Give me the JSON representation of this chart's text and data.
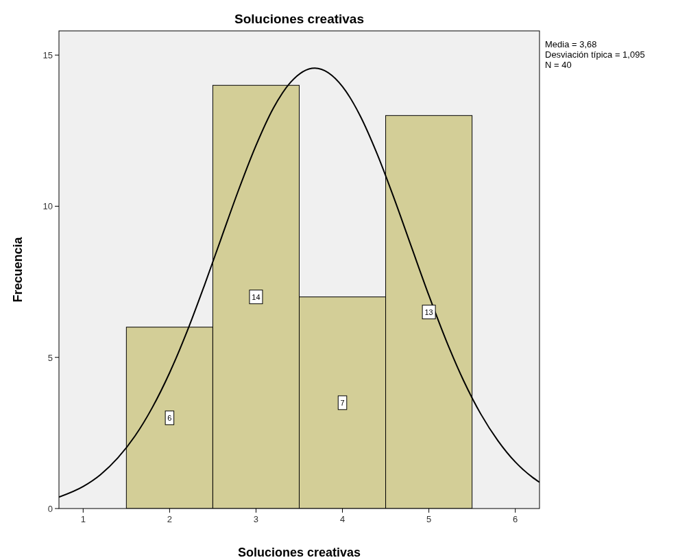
{
  "chart_data": {
    "type": "histogram",
    "title": "Soluciones creativas",
    "xlabel": "Soluciones creativas",
    "ylabel": "Frecuencia",
    "bins": [
      1.5,
      2.5,
      3.5,
      4.5,
      5.5
    ],
    "series": [
      {
        "color": "#d3ce97",
        "values": [
          6,
          14,
          7,
          13
        ],
        "value_labels": [
          "6",
          "14",
          "7",
          "13"
        ]
      },
      {
        "type": "line",
        "color": "#000000",
        "x": [
          0.72,
          1.0,
          1.2,
          1.4,
          1.6,
          1.8,
          2.0,
          2.2,
          2.4,
          2.6,
          2.8,
          3.0,
          3.2,
          3.4,
          3.68,
          4.0,
          4.2,
          4.4,
          4.6,
          4.8,
          5.0,
          5.2,
          5.4,
          5.6,
          5.8,
          6.0,
          6.2,
          6.28
        ],
        "values": [
          0.38,
          0.73,
          1.12,
          1.67,
          2.4,
          3.34,
          4.49,
          5.84,
          7.36,
          8.96,
          10.55,
          12.01,
          13.24,
          14.1,
          14.57,
          13.96,
          13.02,
          11.74,
          10.24,
          8.64,
          7.05,
          5.56,
          4.24,
          3.13,
          2.24,
          1.54,
          1.03,
          0.87
        ]
      }
    ],
    "xlim": [
      0.72,
      6.28
    ],
    "xticks": [
      1,
      2,
      3,
      4,
      5,
      6
    ],
    "ylim": [
      0,
      15.8
    ],
    "yticks": [
      0,
      5,
      10,
      15
    ],
    "grid": false,
    "marker": "none",
    "line_style": "solid",
    "annotations": [
      "Media = 3,68",
      "Desviación típica = 1,095",
      "N = 40"
    ]
  }
}
